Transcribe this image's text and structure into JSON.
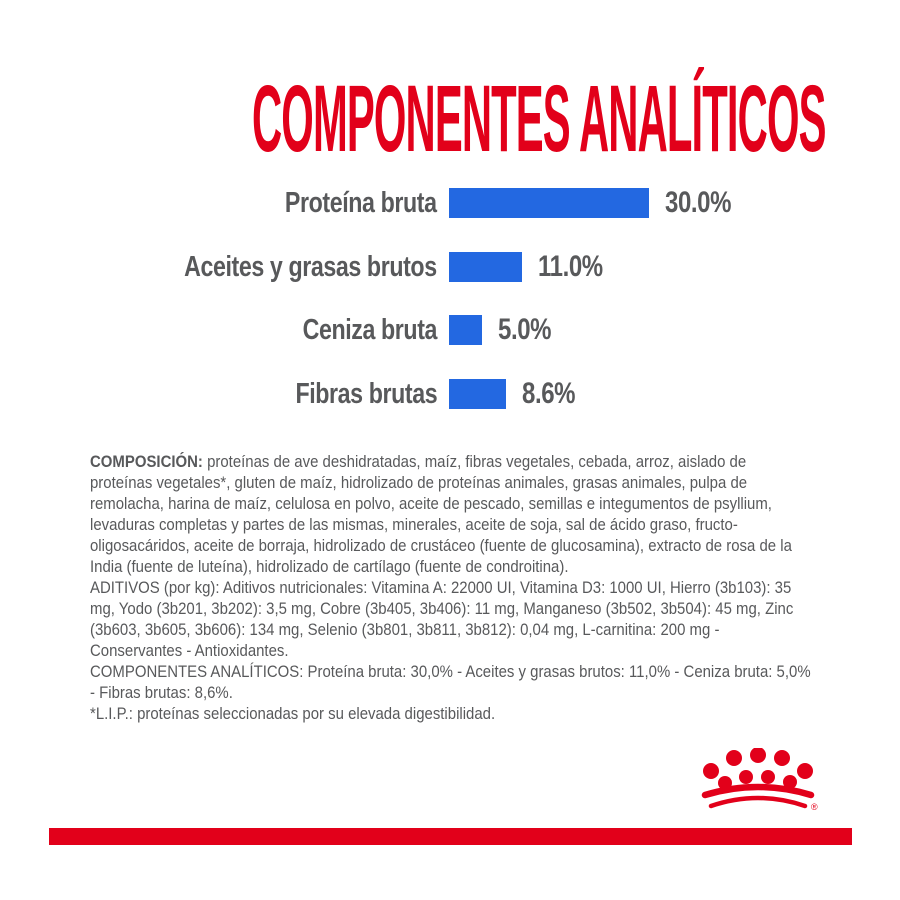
{
  "colors": {
    "red": "#e2001a",
    "blue": "#2368e1",
    "gray": "#58595b"
  },
  "title": "COMPONENTES ANALÍTICOS",
  "chart_data": {
    "type": "bar",
    "orientation": "horizontal",
    "title": "COMPONENTES ANALÍTICOS",
    "categories": [
      "Proteína bruta",
      "Aceites y grasas brutos",
      "Ceniza bruta",
      "Fibras brutas"
    ],
    "values": [
      30.0,
      11.0,
      5.0,
      8.6
    ],
    "value_labels": [
      "30.0%",
      "11.0%",
      "5.0%",
      "8.6%"
    ],
    "unit": "%",
    "xlim": [
      0,
      30
    ],
    "bar_color": "#2368e1",
    "grid": false,
    "legend": false
  },
  "sections": {
    "composition": {
      "label": "COMPOSICIÓN:",
      "text": "proteínas de ave deshidratadas, maíz, fibras vegetales, cebada, arroz, aislado de proteínas vegetales*, gluten de maíz, hidrolizado de proteínas animales, grasas animales, pulpa de remolacha, harina de maíz, celulosa en polvo, aceite de pescado, semillas e integumentos de psyllium, levaduras completas y partes de las mismas, minerales, aceite de soja, sal de ácido graso, fructo-oligosacáridos, aceite de borraja, hidrolizado de crustáceo (fuente de glucosamina), extracto de rosa de la India (fuente de luteína), hidrolizado de cartílago (fuente de condroitina)."
    },
    "additives": {
      "text": "ADITIVOS (por kg): Aditivos nutricionales: Vitamina A: 22000 UI, Vitamina D3: 1000 UI, Hierro (3b103): 35 mg, Yodo (3b201, 3b202): 3,5 mg, Cobre (3b405, 3b406): 11 mg, Manganeso (3b502, 3b504): 45 mg, Zinc (3b603, 3b605, 3b606): 134 mg, Selenio (3b801, 3b811, 3b812): 0,04 mg, L-carnitina: 200 mg - Conservantes - Antioxidantes."
    },
    "analytical": {
      "text": "COMPONENTES ANALÍTICOS: Proteína bruta: 30,0% - Aceites y grasas brutos: 11,0% - Ceniza bruta: 5,0% - Fibras brutas: 8,6%."
    },
    "lip": {
      "text": "*L.I.P.: proteínas seleccionadas por su elevada digestibilidad."
    }
  },
  "footer": {
    "brand_logo": "royal-canin-crown",
    "registered_mark": "®"
  }
}
